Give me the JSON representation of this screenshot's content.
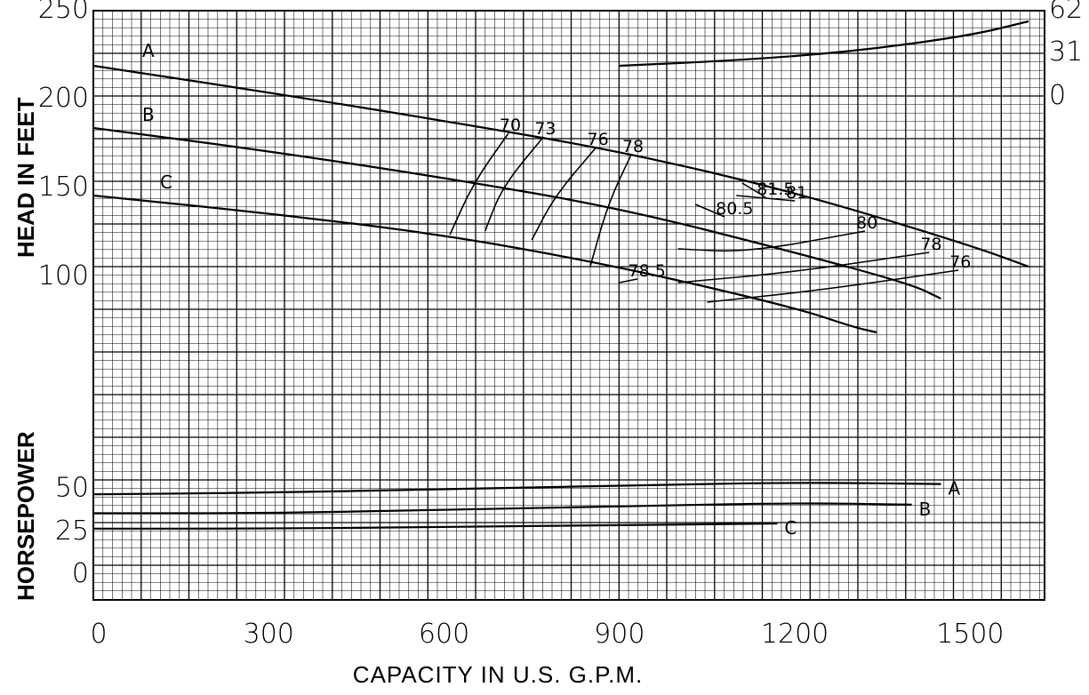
{
  "chart_data": {
    "type": "line",
    "xlabel": "CAPACITY IN U.S. G.P.M.",
    "x_ticks": [
      "0",
      "300",
      "600",
      "900",
      "1200",
      "1500"
    ],
    "xlim": [
      0,
      1650
    ],
    "head_panel": {
      "ylabel": "HEAD IN FEET",
      "y_ticks": [
        "100",
        "150",
        "200",
        "250"
      ],
      "right_ticks": [
        "62",
        "31",
        "0"
      ],
      "series": [
        {
          "name": "A",
          "x": [
            0,
            300,
            600,
            900,
            1200,
            1500,
            1600
          ],
          "y": [
            218,
            203,
            187,
            170,
            147,
            117,
            105
          ]
        },
        {
          "name": "B",
          "x": [
            0,
            300,
            600,
            900,
            1200,
            1400,
            1450
          ],
          "y": [
            183,
            170,
            155,
            138,
            113,
            95,
            87
          ]
        },
        {
          "name": "C",
          "x": [
            0,
            300,
            600,
            900,
            1200,
            1300,
            1340
          ],
          "y": [
            145,
            135,
            123,
            105,
            82,
            71,
            68
          ]
        },
        {
          "name": "",
          "x": [
            900,
            1100,
            1300,
            1500,
            1600
          ],
          "y": [
            218,
            221,
            226,
            235,
            243
          ]
        }
      ],
      "efficiency_curves": [
        {
          "label": "70",
          "x": [
            610,
            650,
            710
          ],
          "y": [
            123,
            152,
            180
          ]
        },
        {
          "label": "73",
          "x": [
            670,
            700,
            770
          ],
          "y": [
            125,
            150,
            178
          ]
        },
        {
          "label": "76",
          "x": [
            750,
            790,
            860
          ],
          "y": [
            120,
            145,
            172
          ]
        },
        {
          "label": "78",
          "x": [
            850,
            880,
            920
          ],
          "y": [
            105,
            140,
            168
          ]
        },
        {
          "label": "80",
          "x": [
            1000,
            1120,
            1320
          ],
          "y": [
            115,
            113,
            125
          ]
        },
        {
          "label": "80.5",
          "x": [
            1030,
            1080
          ],
          "y": [
            140,
            133
          ]
        },
        {
          "label": "81",
          "x": [
            1100,
            1200
          ],
          "y": [
            145,
            142
          ]
        },
        {
          "label": "81.5",
          "x": [
            1110,
            1150
          ],
          "y": [
            152,
            144
          ]
        },
        {
          "label": "78",
          "x": [
            1000,
            1200,
            1430
          ],
          "y": [
            96,
            102,
            113
          ]
        },
        {
          "label": "76",
          "x": [
            1050,
            1250,
            1480
          ],
          "y": [
            85,
            92,
            103
          ]
        },
        {
          "label": "78.5",
          "x": [
            900,
            930
          ],
          "y": [
            96,
            98
          ]
        }
      ]
    },
    "hp_panel": {
      "ylabel": "HORSEPOWER",
      "y_ticks": [
        "0",
        "25",
        "50"
      ],
      "series": [
        {
          "name": "A",
          "x": [
            0,
            300,
            600,
            900,
            1200,
            1450
          ],
          "y": [
            46,
            47,
            49,
            51,
            53,
            52
          ]
        },
        {
          "name": "B",
          "x": [
            0,
            300,
            600,
            900,
            1200,
            1400
          ],
          "y": [
            35,
            35,
            37,
            39,
            41,
            40
          ]
        },
        {
          "name": "C",
          "x": [
            0,
            300,
            600,
            900,
            1170
          ],
          "y": [
            26,
            26,
            27,
            28,
            29
          ]
        }
      ]
    },
    "grid": true
  }
}
